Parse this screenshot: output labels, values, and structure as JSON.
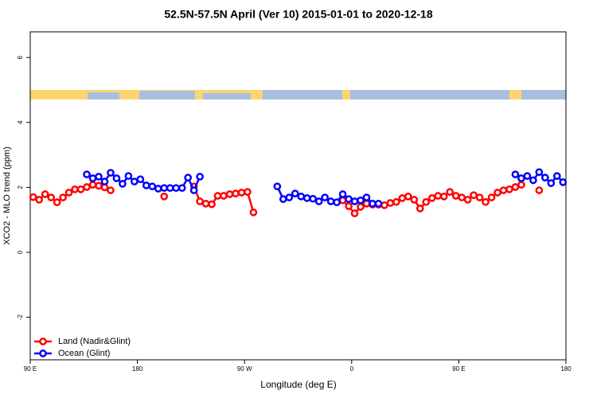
{
  "chart_data": {
    "type": "line",
    "title": "52.5N-57.5N April (Ver 10)   2015-01-01 to 2020-12-18",
    "x_label": "Longitude (deg E)",
    "y_label": "XCO2 - MLO trend (ppm)",
    "x": [
      92.5,
      97.5,
      102.5,
      107.5,
      112.5,
      117.5,
      122.5,
      127.5,
      132.5,
      137.5,
      142.5,
      147.5,
      152.5,
      157.5,
      162.5,
      167.5,
      172.5,
      177.5,
      182.5,
      187.5,
      192.5,
      197.5,
      202.5,
      207.5,
      212.5,
      217.5,
      222.5,
      227.5,
      232.5,
      237.5,
      242.5,
      247.5,
      252.5,
      257.5,
      262.5,
      267.5,
      272.5,
      277.5,
      282.5,
      287.5,
      292.5,
      297.5,
      302.5,
      307.5,
      312.5,
      317.5,
      322.5,
      327.5,
      332.5,
      337.5,
      342.5,
      347.5,
      352.5,
      357.5,
      362.5,
      367.5,
      372.5,
      377.5,
      382.5,
      387.5,
      392.5,
      397.5,
      402.5,
      407.5,
      412.5,
      417.5,
      422.5,
      427.5,
      432.5,
      437.5,
      442.5,
      447.5,
      452.5,
      457.5,
      462.5,
      467.5,
      472.5,
      477.5,
      482.5,
      487.5,
      492.5,
      497.5,
      502.5,
      507.5,
      512.5,
      517.5,
      522.5,
      527.5,
      532.5,
      537.5
    ],
    "series": [
      {
        "name": "Land (Nadir&Glint)",
        "color": "#ff0000",
        "values": [
          1.7,
          1.62,
          1.79,
          1.69,
          1.54,
          1.69,
          1.84,
          1.94,
          1.94,
          2.01,
          2.08,
          2.05,
          2.0,
          1.91,
          null,
          null,
          null,
          null,
          null,
          null,
          null,
          null,
          1.72,
          null,
          null,
          null,
          null,
          2.03,
          1.57,
          1.5,
          1.48,
          1.74,
          1.74,
          1.79,
          1.81,
          1.84,
          1.86,
          1.23,
          null,
          null,
          null,
          null,
          null,
          null,
          null,
          null,
          null,
          null,
          null,
          null,
          null,
          null,
          1.6,
          1.42,
          1.2,
          1.4,
          1.5,
          1.47,
          1.47,
          1.45,
          1.52,
          1.55,
          1.67,
          1.72,
          1.62,
          1.35,
          1.55,
          1.67,
          1.74,
          1.72,
          1.86,
          1.74,
          1.69,
          1.62,
          1.76,
          1.69,
          1.55,
          1.69,
          1.84,
          1.91,
          1.94,
          2.01,
          2.08,
          null,
          null,
          1.91,
          null,
          null,
          null,
          null
        ]
      },
      {
        "name": "Ocean (Glint)",
        "color": "#0000ff",
        "values": [
          null,
          null,
          null,
          null,
          null,
          null,
          null,
          null,
          null,
          2.4,
          2.28,
          2.33,
          2.18,
          2.45,
          2.28,
          2.11,
          2.35,
          2.18,
          2.25,
          2.06,
          2.03,
          1.96,
          1.98,
          1.98,
          1.98,
          1.98,
          2.3,
          1.91,
          2.33,
          null,
          null,
          null,
          null,
          null,
          null,
          null,
          null,
          null,
          null,
          null,
          null,
          2.03,
          1.64,
          1.69,
          1.81,
          1.72,
          1.67,
          1.65,
          1.57,
          1.69,
          1.57,
          1.54,
          1.79,
          1.64,
          1.57,
          1.6,
          1.69,
          1.5,
          1.5,
          null,
          null,
          null,
          null,
          null,
          null,
          null,
          null,
          null,
          null,
          null,
          null,
          null,
          null,
          null,
          null,
          null,
          null,
          null,
          null,
          null,
          null,
          2.4,
          2.28,
          2.35,
          2.22,
          2.47,
          2.3,
          2.13,
          2.35,
          2.16
        ]
      }
    ],
    "xlim": [
      90,
      540
    ],
    "xticks": [
      {
        "value": 90,
        "label": "90 E"
      },
      180,
      {
        "value": 270,
        "label": "90 W"
      },
      {
        "value": 360,
        "label": "0"
      },
      {
        "value": 450,
        "label": "90 E"
      },
      {
        "value": 540,
        "label": "180"
      }
    ],
    "ylim": [
      -3.31,
      6.79
    ],
    "yticks": [
      -2,
      0,
      2,
      4,
      6
    ],
    "legend": "bottom-left"
  }
}
